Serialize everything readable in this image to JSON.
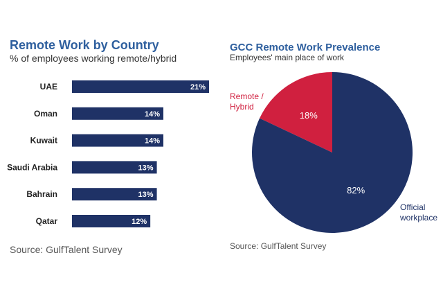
{
  "bar_panel": {
    "title": "Remote Work by Country",
    "subtitle": "% of employees working remote/hybrid",
    "source": "Source: GulfTalent Survey"
  },
  "pie_panel": {
    "title": "GCC Remote Work Prevalence",
    "subtitle": "Employees' main place of work",
    "source": "Source: GulfTalent Survey"
  },
  "colors": {
    "bar": "#1f3266",
    "navy": "#1f3266",
    "red": "#d0203f",
    "title_blue": "#2e5f9e"
  },
  "chart_data": [
    {
      "type": "bar",
      "orientation": "horizontal",
      "title": "Remote Work by Country",
      "subtitle": "% of employees working remote/hybrid",
      "categories": [
        "UAE",
        "Oman",
        "Kuwait",
        "Saudi Arabia",
        "Bahrain",
        "Qatar"
      ],
      "values": [
        21,
        14,
        14,
        13,
        13,
        12
      ],
      "value_labels": [
        "21%",
        "14%",
        "14%",
        "13%",
        "13%",
        "12%"
      ],
      "xlim": [
        0,
        21
      ],
      "grid": false
    },
    {
      "type": "pie",
      "title": "GCC Remote Work Prevalence",
      "subtitle": "Employees' main place of work",
      "slices": [
        {
          "label": "Remote / Hybrid",
          "label_lines": [
            "Remote /",
            "Hybrid"
          ],
          "value": 18,
          "value_label": "18%",
          "color": "#d0203f"
        },
        {
          "label": "Official workplace",
          "label_lines": [
            "Official",
            "workplace"
          ],
          "value": 82,
          "value_label": "82%",
          "color": "#1f3266"
        }
      ]
    }
  ]
}
